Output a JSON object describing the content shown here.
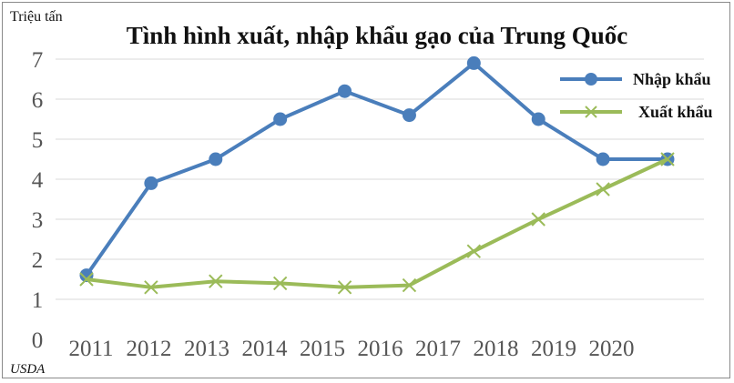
{
  "chart_data": {
    "type": "line",
    "title": "Tình hình xuất, nhập khẩu gạo của Trung Quốc",
    "ylabel": "Triệu tấn",
    "xlabel": "",
    "source": "USDA",
    "ylim": [
      0,
      7
    ],
    "yticks": [
      "0",
      "1",
      "2",
      "3",
      "4",
      "5",
      "6",
      "7"
    ],
    "categories": [
      "2011",
      "2012",
      "2013",
      "2014",
      "2015",
      "2016",
      "2017",
      "2018",
      "2019",
      "2020"
    ],
    "grid": true,
    "legend_position": "top-right",
    "series": [
      {
        "name": "Nhập khẩu",
        "color": "#4a7ebb",
        "marker": "circle",
        "values": [
          1.6,
          3.9,
          4.5,
          5.5,
          6.2,
          5.6,
          6.9,
          5.5,
          4.5,
          4.5
        ]
      },
      {
        "name": "Xuất khẩu",
        "color": "#9bbb59",
        "marker": "x",
        "values": [
          1.5,
          1.3,
          1.45,
          1.4,
          1.3,
          1.35,
          2.2,
          3.0,
          3.75,
          4.5
        ]
      }
    ]
  }
}
